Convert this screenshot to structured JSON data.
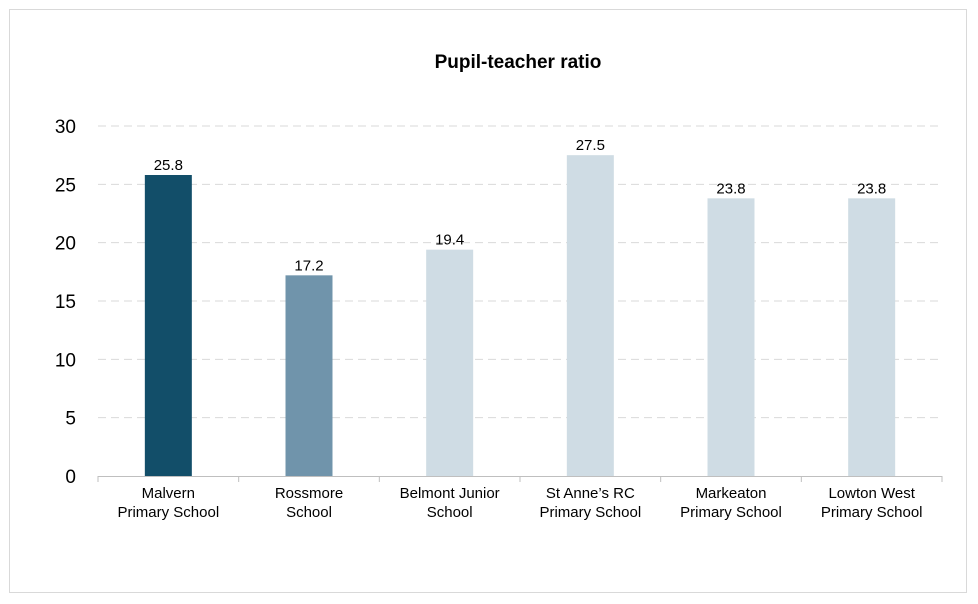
{
  "chart_data": {
    "type": "bar",
    "title": "Pupil-teacher ratio",
    "xlabel": "",
    "ylabel": "",
    "ylim": [
      0,
      30
    ],
    "yticks": [
      0,
      5,
      10,
      15,
      20,
      25,
      30
    ],
    "grid": "horizontal dashed",
    "categories": [
      [
        "Malvern",
        "Primary School"
      ],
      [
        "Rossmore",
        "School"
      ],
      [
        "Belmont Junior",
        "School"
      ],
      [
        "St Anne’s RC",
        "Primary School"
      ],
      [
        "Markeaton",
        "Primary School"
      ],
      [
        "Lowton West",
        "Primary School"
      ]
    ],
    "values": [
      25.8,
      17.2,
      19.4,
      27.5,
      23.8,
      23.8
    ],
    "data_labels": [
      "25.8",
      "17.2",
      "19.4",
      "27.5",
      "23.8",
      "23.8"
    ],
    "bar_colors": [
      "#124e69",
      "#7094ab",
      "#cfdce4",
      "#cfdce4",
      "#cfdce4",
      "#cfdce4"
    ]
  }
}
